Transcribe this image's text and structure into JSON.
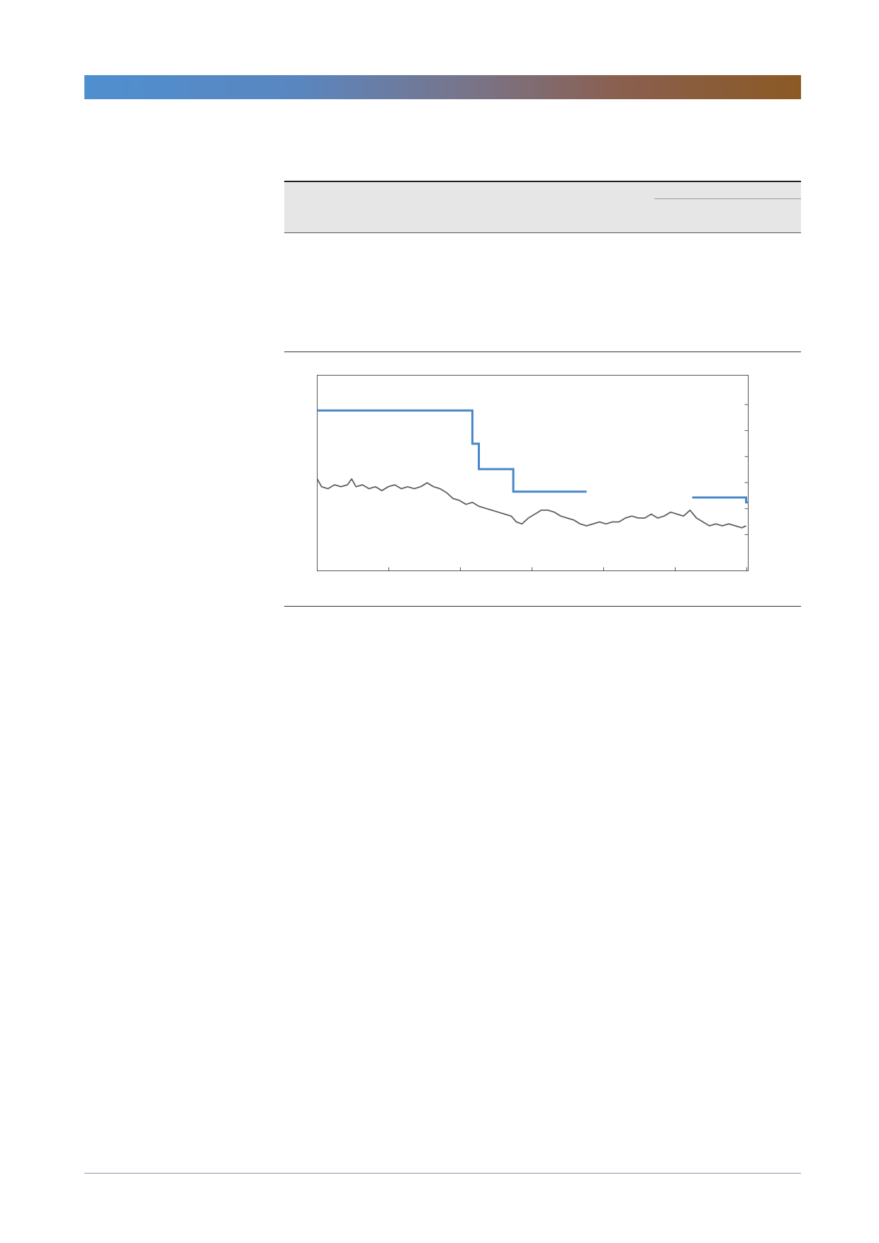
{
  "colors": {
    "banner_start": "#4f8fd0",
    "banner_end": "#8b5a24",
    "step_series": "#4a86c8",
    "price_series": "#5f5f5f",
    "table_header_bg": "#e6e6e6"
  },
  "chart_data": {
    "type": "line",
    "title": "",
    "xlabel": "",
    "ylabel": "",
    "grid": false,
    "legend": "none",
    "x_ticks": 7,
    "y_ticks_right": 6,
    "xlim": [
      0,
      1000
    ],
    "ylim": [
      0,
      100
    ],
    "series": [
      {
        "style": "step",
        "color": "#4a86c8",
        "segments": [
          [
            [
              0,
              82
            ],
            [
              360,
              82
            ],
            [
              360,
              65
            ],
            [
              375,
              65
            ],
            [
              375,
              52
            ],
            [
              455,
              52
            ],
            [
              455,
              40.5
            ],
            [
              625,
              40.5
            ]
          ],
          [
            [
              870,
              37.5
            ],
            [
              995,
              37.5
            ],
            [
              995,
              35
            ],
            [
              1000,
              35
            ]
          ]
        ]
      },
      {
        "style": "line",
        "color": "#5f5f5f",
        "points": [
          [
            0,
            47
          ],
          [
            10,
            43
          ],
          [
            25,
            42
          ],
          [
            40,
            44
          ],
          [
            55,
            43
          ],
          [
            70,
            44
          ],
          [
            80,
            47
          ],
          [
            90,
            43
          ],
          [
            105,
            44
          ],
          [
            120,
            42
          ],
          [
            135,
            43
          ],
          [
            150,
            41
          ],
          [
            165,
            43
          ],
          [
            180,
            44
          ],
          [
            195,
            42
          ],
          [
            210,
            43
          ],
          [
            225,
            42
          ],
          [
            240,
            43
          ],
          [
            255,
            45
          ],
          [
            270,
            43
          ],
          [
            285,
            42
          ],
          [
            300,
            40
          ],
          [
            315,
            37
          ],
          [
            330,
            36
          ],
          [
            345,
            34
          ],
          [
            360,
            35
          ],
          [
            375,
            33
          ],
          [
            390,
            32
          ],
          [
            405,
            31
          ],
          [
            420,
            30
          ],
          [
            435,
            29
          ],
          [
            450,
            28
          ],
          [
            462,
            25
          ],
          [
            475,
            24
          ],
          [
            490,
            27
          ],
          [
            505,
            29
          ],
          [
            520,
            31
          ],
          [
            535,
            31
          ],
          [
            550,
            30
          ],
          [
            565,
            28
          ],
          [
            580,
            27
          ],
          [
            595,
            26
          ],
          [
            610,
            24
          ],
          [
            625,
            23
          ],
          [
            640,
            24
          ],
          [
            655,
            25
          ],
          [
            670,
            24
          ],
          [
            685,
            25
          ],
          [
            700,
            25
          ],
          [
            715,
            27
          ],
          [
            730,
            28
          ],
          [
            745,
            27
          ],
          [
            760,
            27
          ],
          [
            775,
            29
          ],
          [
            790,
            27
          ],
          [
            805,
            28
          ],
          [
            820,
            30
          ],
          [
            835,
            29
          ],
          [
            850,
            28
          ],
          [
            865,
            31
          ],
          [
            880,
            27
          ],
          [
            895,
            25
          ],
          [
            910,
            23
          ],
          [
            925,
            24
          ],
          [
            940,
            23
          ],
          [
            955,
            24
          ],
          [
            970,
            23
          ],
          [
            985,
            22
          ],
          [
            995,
            23
          ]
        ]
      }
    ]
  }
}
